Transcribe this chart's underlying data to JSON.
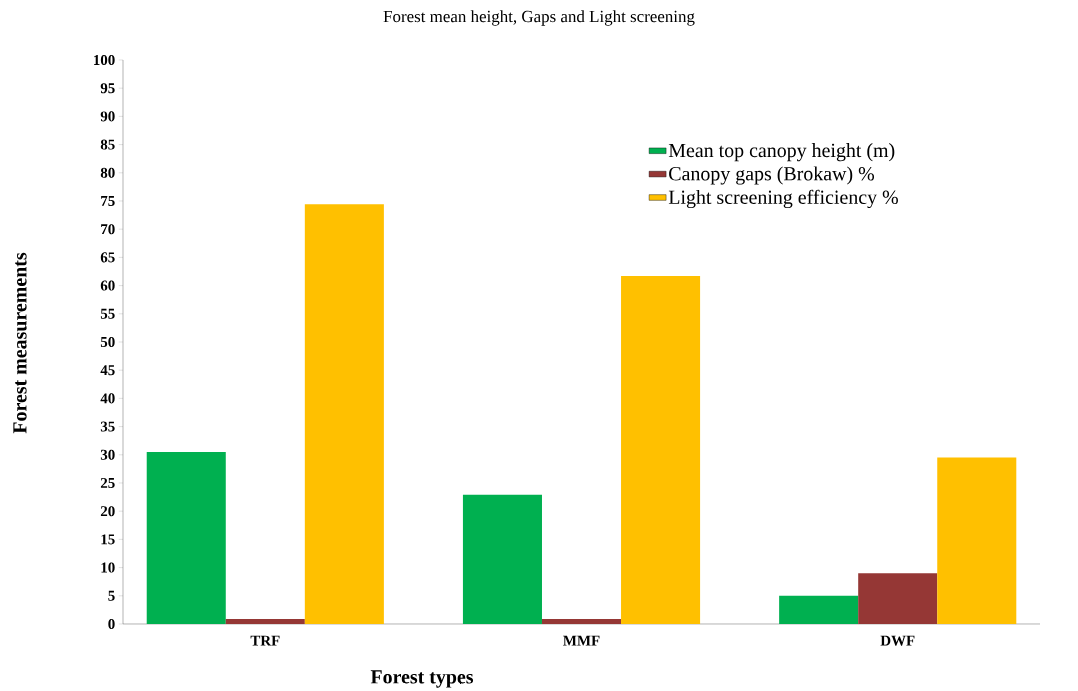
{
  "chart_data": {
    "type": "bar",
    "title": "Forest mean height, Gaps and Light screening",
    "xlabel": "Forest types",
    "ylabel": "Forest measurements",
    "categories": [
      "TRF",
      "MMF",
      "DWF"
    ],
    "series": [
      {
        "name": "Mean top canopy height (m)",
        "color": "#00b050",
        "values": [
          30.5,
          22.9,
          5.0
        ]
      },
      {
        "name": "Canopy gaps (Brokaw) %",
        "color": "#953735",
        "values": [
          0.9,
          0.9,
          9.0
        ]
      },
      {
        "name": "Light screening efficiency %",
        "color": "#ffc000",
        "values": [
          74.4,
          61.7,
          29.5
        ]
      }
    ],
    "ylim": [
      0,
      100
    ],
    "yticks": [
      0,
      5,
      10,
      15,
      20,
      25,
      30,
      35,
      40,
      45,
      50,
      55,
      60,
      65,
      70,
      75,
      80,
      85,
      90,
      95,
      100
    ],
    "grid": false,
    "legend": "top right"
  }
}
